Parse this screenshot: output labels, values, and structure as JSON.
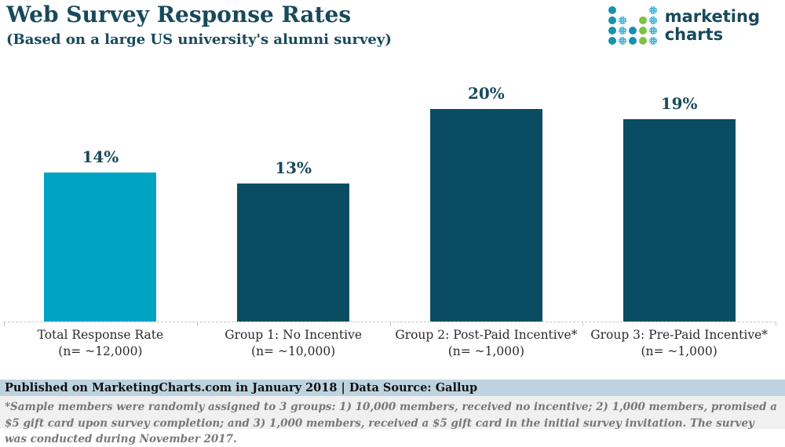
{
  "header": {
    "title": "Web Survey Response Rates",
    "subtitle": "(Based on a large US university's alumni survey)"
  },
  "logo": {
    "line1": "marketing",
    "line2": "charts",
    "dot_grid": [
      [
        "t",
        "e",
        "e",
        "e",
        "p"
      ],
      [
        "t",
        "p",
        "e",
        "g",
        "p"
      ],
      [
        "t",
        "p",
        "t",
        "g",
        "p"
      ],
      [
        "t",
        "p",
        "t",
        "g",
        "p"
      ]
    ],
    "dot_colors": {
      "t": "#1691b0",
      "g": "#7fc142",
      "p": "#4fb8d6"
    }
  },
  "chart_data": {
    "type": "bar",
    "title": "Web Survey Response Rates",
    "subtitle": "(Based on a large US university's alumni survey)",
    "categories": [
      "Total Response Rate (n= ~12,000)",
      "Group 1: No Incentive (n= ~10,000)",
      "Group 2: Post-Paid Incentive* (n= ~1,000)",
      "Group 3: Pre-Paid Incentive* (n= ~1,000)"
    ],
    "category_lines": [
      [
        "Total Response Rate",
        "(n= ~12,000)"
      ],
      [
        "Group 1: No Incentive",
        "(n= ~10,000)"
      ],
      [
        "Group 2: Post-Paid Incentive*",
        "(n= ~1,000)"
      ],
      [
        "Group 3: Pre-Paid Incentive*",
        "(n= ~1,000)"
      ]
    ],
    "values": [
      14,
      13,
      20,
      19
    ],
    "data_labels": [
      "14%",
      "13%",
      "20%",
      "19%"
    ],
    "unit": "percent",
    "ylim": [
      0,
      21
    ],
    "grid": false,
    "legend": false,
    "bar_colors": [
      "#00a3c4",
      "#0a4d63",
      "#0a4d63",
      "#0a4d63"
    ]
  },
  "footer": {
    "published": "Published on MarketingCharts.com in January 2018 | Data Source: Gallup",
    "note": "*Sample members were randomly assigned to 3 groups: 1) 10,000 members, received no incentive; 2) 1,000 members, promised a $5 gift card upon survey completion; and 3) 1,000 members, received a $5 gift card in the initial survey invitation. The survey was conducted during November 2017."
  },
  "colors": {
    "accent_teal": "#17495d",
    "cyan_bar": "#00a3c4",
    "dark_bar": "#0a4d63",
    "publication_band": "#bed3e0",
    "footnote_band": "#f0f0f0",
    "axis": "#c9c9c9"
  }
}
